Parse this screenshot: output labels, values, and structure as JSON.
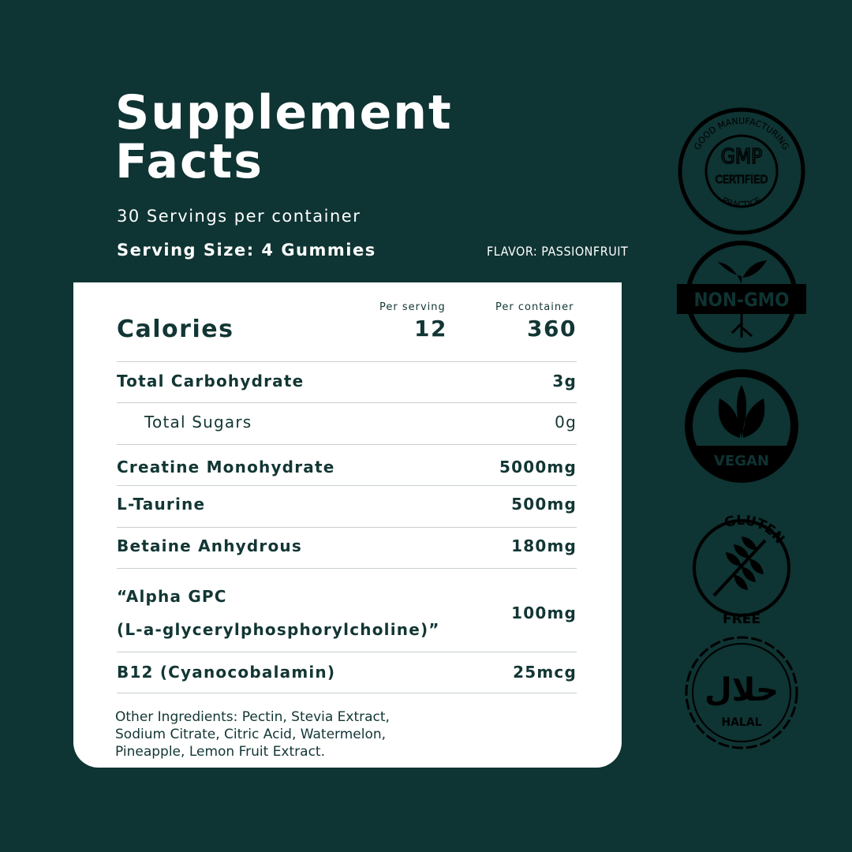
{
  "header": {
    "title_lines": [
      "Supplement",
      "Facts"
    ],
    "servings": "30 Servings per container",
    "serving_size": "Serving Size: 4 Gummies",
    "flavor": "FLAVOR: PASSIONFRUIT"
  },
  "table": {
    "columns": [
      "Per serving",
      "Per container"
    ],
    "calories": {
      "label": "Calories",
      "per_serving": "12",
      "per_container": "360"
    },
    "rows": [
      {
        "label": [
          "Total Carbohydrate"
        ],
        "amount": "3g"
      },
      {
        "label": [
          "Total Sugars"
        ],
        "amount": "0g",
        "indent": true
      },
      {
        "label": [
          "Creatine Monohydrate"
        ],
        "amount": "5000mg"
      },
      {
        "label": [
          "L-Taurine"
        ],
        "amount": "500mg"
      },
      {
        "label": [
          "Betaine Anhydrous"
        ],
        "amount": "180mg"
      },
      {
        "label": [
          "“Alpha GPC",
          "(L-a-glycerylphosphorylcholine)”"
        ],
        "amount": "100mg"
      },
      {
        "label": [
          "B12 (Cyanocobalamin)"
        ],
        "amount": "25mcg"
      }
    ],
    "other_ingredients": "Other Ingredients: Pectin, Stevia Extract, Sodium Citrate, Citric Acid, Watermelon, Pineapple, Lemon Fruit Extract."
  },
  "badges": [
    {
      "texts": [
        "GMP",
        "CERTIFIED",
        "GOOD MANUFACTURING",
        "PRACTICE"
      ]
    },
    {
      "texts": [
        "NON-GMO"
      ]
    },
    {
      "texts": [
        "VEGAN"
      ]
    },
    {
      "texts": [
        "GLUTEN",
        "FREE"
      ]
    },
    {
      "texts": [
        "حلال",
        "HALAL"
      ]
    }
  ]
}
